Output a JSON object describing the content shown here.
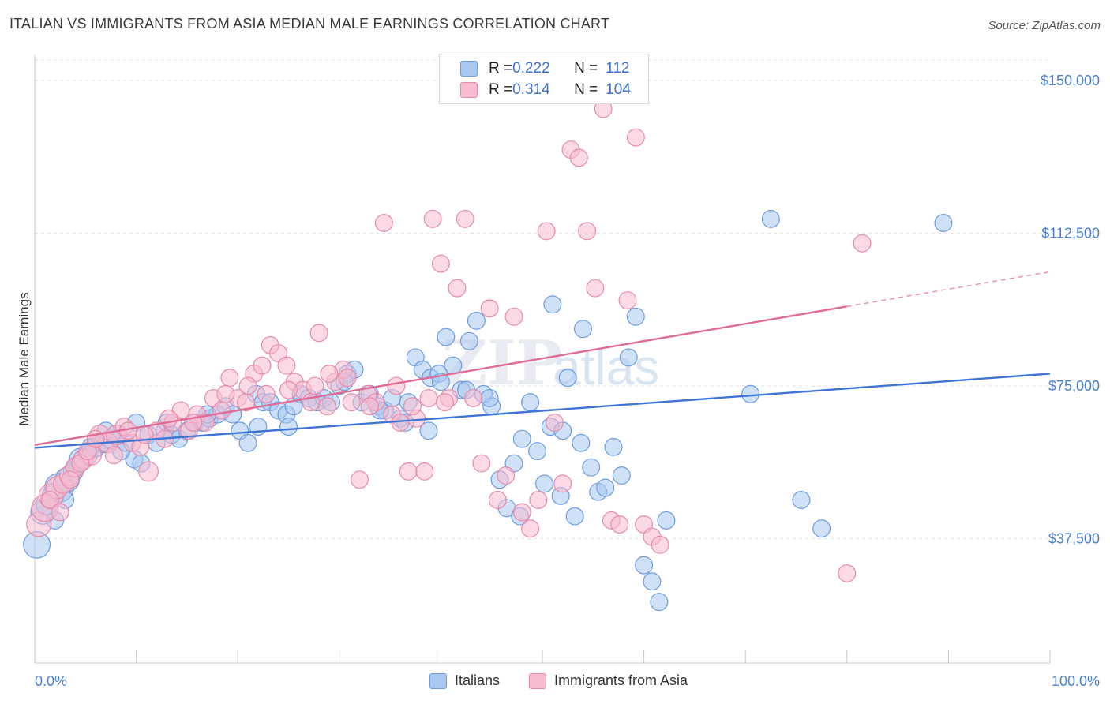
{
  "header": {
    "title": "ITALIAN VS IMMIGRANTS FROM ASIA MEDIAN MALE EARNINGS CORRELATION CHART",
    "source": "Source: ZipAtlas.com"
  },
  "legend": {
    "rows": [
      {
        "r_label": "R = ",
        "r_value": "0.222",
        "n_label": "N = ",
        "n_value": "112",
        "color": "#a8c8f0",
        "border": "#6f9be0"
      },
      {
        "r_label": "R = ",
        "r_value": "0.314",
        "n_label": "N = ",
        "n_value": "104",
        "color": "#f7bcd0",
        "border": "#e88aa8"
      }
    ]
  },
  "watermark": {
    "zip": "ZIP",
    "atlas": "atlas"
  },
  "chart_data": {
    "type": "scatter",
    "ylabel": "Median Male Earnings",
    "xlabel": "",
    "x_tick_labels": [
      "0.0%",
      "100.0%"
    ],
    "y_ticks": [
      {
        "value": 37500,
        "label": "$37,500"
      },
      {
        "value": 75000,
        "label": "$75,000"
      },
      {
        "value": 112500,
        "label": "$112,500"
      },
      {
        "value": 150000,
        "label": "$150,000"
      }
    ],
    "xlim": [
      0,
      100
    ],
    "ylim": [
      7000,
      155000
    ],
    "grid": true,
    "legend_position": "top-center",
    "series": [
      {
        "name": "Italians",
        "color": "#6f9be0",
        "fill": "#a8c8f0",
        "trend": {
          "x0": 0,
          "y0": 59800,
          "x1": 100,
          "y1": 78000
        },
        "points": [
          [
            0.2,
            36,
            20
          ],
          [
            0.8,
            44,
            18
          ],
          [
            1.2,
            46,
            16
          ],
          [
            1.8,
            48,
            16
          ],
          [
            2.4,
            50,
            22
          ],
          [
            3.2,
            52,
            18
          ],
          [
            3.8,
            54,
            14
          ],
          [
            4.5,
            57,
            16
          ],
          [
            5.2,
            58,
            14
          ],
          [
            6.0,
            60,
            14
          ],
          [
            6.8,
            61,
            14
          ],
          [
            7.5,
            62,
            14
          ],
          [
            8.2,
            63,
            14
          ],
          [
            9.0,
            61,
            12
          ],
          [
            9.8,
            57,
            12
          ],
          [
            10.5,
            56,
            12
          ],
          [
            11.2,
            63,
            12
          ],
          [
            12.0,
            61,
            12
          ],
          [
            12.8,
            64,
            12
          ],
          [
            13.5,
            63,
            12
          ],
          [
            14.2,
            62,
            12
          ],
          [
            15.0,
            64,
            12
          ],
          [
            15.8,
            66,
            12
          ],
          [
            16.5,
            66,
            12
          ],
          [
            17.2,
            67,
            12
          ],
          [
            18.0,
            68,
            12
          ],
          [
            18.8,
            70,
            12
          ],
          [
            19.5,
            68,
            12
          ],
          [
            20.2,
            64,
            12
          ],
          [
            21.0,
            61,
            12
          ],
          [
            21.8,
            73,
            12
          ],
          [
            22.5,
            71,
            12
          ],
          [
            23.2,
            71,
            12
          ],
          [
            24.0,
            69,
            12
          ],
          [
            24.8,
            68,
            12
          ],
          [
            25.5,
            70,
            12
          ],
          [
            26.2,
            73,
            12
          ],
          [
            27.0,
            72,
            12
          ],
          [
            27.8,
            71,
            12
          ],
          [
            28.5,
            72,
            12
          ],
          [
            29.2,
            71,
            12
          ],
          [
            30.0,
            75,
            12
          ],
          [
            30.8,
            78,
            12
          ],
          [
            31.5,
            79,
            12
          ],
          [
            32.2,
            71,
            12
          ],
          [
            33.0,
            73,
            12
          ],
          [
            33.8,
            70,
            12
          ],
          [
            34.5,
            69,
            12
          ],
          [
            35.2,
            72,
            12
          ],
          [
            36.0,
            67,
            12
          ],
          [
            36.8,
            71,
            12
          ],
          [
            37.5,
            82,
            12
          ],
          [
            38.2,
            79,
            12
          ],
          [
            39.0,
            77,
            12
          ],
          [
            39.8,
            78,
            12
          ],
          [
            40.5,
            87,
            12
          ],
          [
            41.2,
            80,
            12
          ],
          [
            42.0,
            74,
            12
          ],
          [
            42.8,
            86,
            12
          ],
          [
            43.5,
            91,
            12
          ],
          [
            44.2,
            73,
            12
          ],
          [
            45.0,
            70,
            12
          ],
          [
            45.8,
            52,
            12
          ],
          [
            46.5,
            45,
            12
          ],
          [
            47.2,
            56,
            12
          ],
          [
            48.0,
            62,
            12
          ],
          [
            48.8,
            71,
            12
          ],
          [
            49.5,
            59,
            12
          ],
          [
            50.2,
            51,
            12
          ],
          [
            51.0,
            95,
            12
          ],
          [
            51.8,
            48,
            12
          ],
          [
            52.5,
            77,
            12
          ],
          [
            53.2,
            43,
            12
          ],
          [
            54.0,
            89,
            12
          ],
          [
            54.8,
            55,
            12
          ],
          [
            55.5,
            49,
            12
          ],
          [
            56.2,
            50,
            12
          ],
          [
            57.0,
            60,
            12
          ],
          [
            57.8,
            53,
            12
          ],
          [
            58.5,
            82,
            12
          ],
          [
            59.2,
            92,
            12
          ],
          [
            60.0,
            31,
            12
          ],
          [
            60.8,
            27,
            12
          ],
          [
            61.5,
            22,
            12
          ],
          [
            62.2,
            42,
            12
          ],
          [
            70.5,
            73,
            12
          ],
          [
            72.5,
            116,
            12
          ],
          [
            75.5,
            47,
            12
          ],
          [
            77.5,
            40,
            12
          ],
          [
            89.5,
            115,
            12
          ],
          [
            2.0,
            42,
            12
          ],
          [
            3.0,
            47,
            12
          ],
          [
            4.0,
            55,
            12
          ],
          [
            5.5,
            60,
            12
          ],
          [
            7.0,
            64,
            12
          ],
          [
            8.5,
            59,
            12
          ],
          [
            10.0,
            66,
            12
          ],
          [
            13.0,
            66,
            12
          ],
          [
            17.0,
            68,
            12
          ],
          [
            22.0,
            65,
            12
          ],
          [
            25.0,
            65,
            12
          ],
          [
            30.5,
            76,
            12
          ],
          [
            34.0,
            69,
            12
          ],
          [
            36.5,
            66,
            12
          ],
          [
            38.8,
            64,
            12
          ],
          [
            40.0,
            76,
            12
          ],
          [
            42.5,
            74,
            12
          ],
          [
            44.8,
            72,
            12
          ],
          [
            47.8,
            43,
            12
          ],
          [
            50.8,
            65,
            12
          ],
          [
            52.0,
            64,
            12
          ],
          [
            53.8,
            61,
            12
          ]
        ]
      },
      {
        "name": "Immigrants from Asia",
        "color": "#e88aa8",
        "fill": "#f7bcd0",
        "trend": {
          "x0": 0,
          "y0": 60500,
          "x1": 80,
          "y1": 94500,
          "x2": 100,
          "y2": 103000
        },
        "points": [
          [
            0.4,
            41,
            18
          ],
          [
            1.0,
            45,
            20
          ],
          [
            1.6,
            48,
            18
          ],
          [
            2.2,
            50,
            16
          ],
          [
            2.8,
            51,
            14
          ],
          [
            3.4,
            53,
            14
          ],
          [
            4.0,
            55,
            14
          ],
          [
            4.8,
            57,
            14
          ],
          [
            5.6,
            58,
            14
          ],
          [
            6.4,
            63,
            14
          ],
          [
            7.2,
            61,
            14
          ],
          [
            8.0,
            63,
            14
          ],
          [
            8.8,
            65,
            12
          ],
          [
            9.6,
            61,
            12
          ],
          [
            10.4,
            60,
            12
          ],
          [
            11.2,
            54,
            14
          ],
          [
            12.0,
            64,
            12
          ],
          [
            12.8,
            62,
            12
          ],
          [
            13.6,
            66,
            12
          ],
          [
            14.4,
            69,
            12
          ],
          [
            15.2,
            64,
            12
          ],
          [
            16.0,
            68,
            12
          ],
          [
            16.8,
            66,
            12
          ],
          [
            17.6,
            72,
            12
          ],
          [
            18.4,
            69,
            12
          ],
          [
            19.2,
            77,
            12
          ],
          [
            20.0,
            72,
            12
          ],
          [
            20.8,
            71,
            12
          ],
          [
            21.6,
            78,
            12
          ],
          [
            22.4,
            80,
            12
          ],
          [
            23.2,
            85,
            12
          ],
          [
            24.0,
            83,
            12
          ],
          [
            24.8,
            80,
            12
          ],
          [
            25.6,
            76,
            12
          ],
          [
            26.4,
            74,
            12
          ],
          [
            27.2,
            71,
            12
          ],
          [
            28.0,
            88,
            12
          ],
          [
            28.8,
            70,
            12
          ],
          [
            29.6,
            76,
            12
          ],
          [
            30.4,
            79,
            12
          ],
          [
            31.2,
            71,
            12
          ],
          [
            32.0,
            52,
            12
          ],
          [
            32.8,
            73,
            12
          ],
          [
            33.6,
            71,
            12
          ],
          [
            34.4,
            115,
            12
          ],
          [
            35.2,
            68,
            12
          ],
          [
            36.0,
            66,
            12
          ],
          [
            36.8,
            54,
            12
          ],
          [
            37.6,
            67,
            12
          ],
          [
            38.4,
            54,
            12
          ],
          [
            39.2,
            116,
            12
          ],
          [
            40.0,
            105,
            12
          ],
          [
            40.8,
            72,
            12
          ],
          [
            41.6,
            99,
            12
          ],
          [
            42.4,
            116,
            12
          ],
          [
            43.2,
            72,
            12
          ],
          [
            44.0,
            56,
            12
          ],
          [
            44.8,
            94,
            12
          ],
          [
            45.6,
            47,
            12
          ],
          [
            46.4,
            53,
            12
          ],
          [
            47.2,
            92,
            12
          ],
          [
            48.0,
            44,
            12
          ],
          [
            48.8,
            40,
            12
          ],
          [
            49.6,
            47,
            12
          ],
          [
            50.4,
            113,
            12
          ],
          [
            51.2,
            66,
            12
          ],
          [
            52.0,
            51,
            12
          ],
          [
            52.8,
            133,
            12
          ],
          [
            53.6,
            131,
            12
          ],
          [
            54.4,
            113,
            12
          ],
          [
            55.2,
            99,
            12
          ],
          [
            56.0,
            143,
            12
          ],
          [
            56.8,
            42,
            12
          ],
          [
            57.6,
            41,
            12
          ],
          [
            58.4,
            96,
            12
          ],
          [
            59.2,
            136,
            12
          ],
          [
            60.0,
            41,
            12
          ],
          [
            60.8,
            38,
            12
          ],
          [
            61.6,
            36,
            12
          ],
          [
            80.0,
            29,
            12
          ],
          [
            81.5,
            110,
            12
          ],
          [
            1.5,
            47,
            12
          ],
          [
            2.5,
            44,
            12
          ],
          [
            3.5,
            52,
            12
          ],
          [
            4.5,
            56,
            12
          ],
          [
            5.2,
            59,
            12
          ],
          [
            6.0,
            62,
            12
          ],
          [
            7.8,
            58,
            12
          ],
          [
            9.2,
            64,
            12
          ],
          [
            10.8,
            63,
            12
          ],
          [
            13.2,
            67,
            12
          ],
          [
            15.6,
            66,
            12
          ],
          [
            18.8,
            73,
            12
          ],
          [
            21.0,
            75,
            12
          ],
          [
            22.8,
            73,
            12
          ],
          [
            25.0,
            74,
            12
          ],
          [
            27.6,
            75,
            12
          ],
          [
            29.0,
            78,
            12
          ],
          [
            30.8,
            77,
            12
          ],
          [
            33.0,
            70,
            12
          ],
          [
            35.6,
            75,
            12
          ],
          [
            37.2,
            70,
            12
          ],
          [
            38.8,
            72,
            12
          ],
          [
            40.4,
            71,
            12
          ]
        ]
      }
    ]
  }
}
